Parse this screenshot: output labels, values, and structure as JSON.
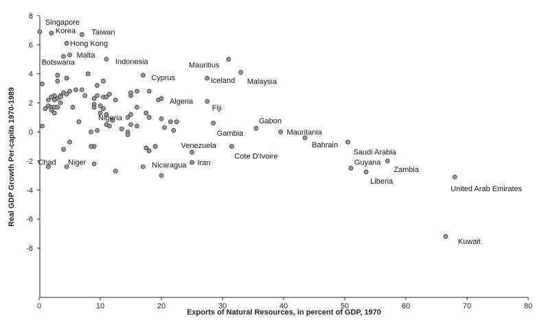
{
  "chart_data": {
    "type": "scatter",
    "title": "",
    "xlabel": "Exports of Natural Resources, in percent of GDP, 1970",
    "ylabel": "Real GDP Growth Per-capita 1970-1989",
    "xlim": [
      0,
      80
    ],
    "ylim": [
      -8,
      8
    ],
    "xticks": [
      "0",
      "10",
      "20",
      "30",
      "40",
      "50",
      "60",
      "70",
      "80"
    ],
    "yticks": [
      "8",
      "6",
      "4",
      "2",
      "0",
      "-2",
      "-4",
      "-6",
      "-8"
    ],
    "grid": false,
    "legend": "none",
    "marker_color": "#9a9a9a",
    "labeled_points": [
      {
        "label": "Singapore",
        "x": 0.1,
        "y": 6.9
      },
      {
        "label": "Korea",
        "x": 2.0,
        "y": 6.8
      },
      {
        "label": "Taiwan",
        "x": 7.0,
        "y": 6.7
      },
      {
        "label": "Hong Kong",
        "x": 4.5,
        "y": 6.1
      },
      {
        "label": "Malta",
        "x": 5.0,
        "y": 5.3
      },
      {
        "label": "Botswana",
        "x": 4.0,
        "y": 5.2
      },
      {
        "label": "Indonesia",
        "x": 11.0,
        "y": 5.0
      },
      {
        "label": "Mauritius",
        "x": 31.0,
        "y": 5.0
      },
      {
        "label": "Malaysia",
        "x": 33.0,
        "y": 4.1
      },
      {
        "label": "Cyprus",
        "x": 17.0,
        "y": 3.9
      },
      {
        "label": "Iceland",
        "x": 27.5,
        "y": 3.7
      },
      {
        "label": "Fiji",
        "x": 27.5,
        "y": 2.1
      },
      {
        "label": "Algeria",
        "x": 20.0,
        "y": 2.3
      },
      {
        "label": "Nigeria",
        "x": 14.5,
        "y": 1.0
      },
      {
        "label": "Gabon",
        "x": 35.5,
        "y": 0.25
      },
      {
        "label": "Gambia",
        "x": 28.5,
        "y": 0.6
      },
      {
        "label": "Mauritania",
        "x": 39.5,
        "y": 0.0
      },
      {
        "label": "Bahrain",
        "x": 43.5,
        "y": -0.4
      },
      {
        "label": "Saudi Arabia",
        "x": 50.5,
        "y": -0.7
      },
      {
        "label": "Venezuela",
        "x": 25.0,
        "y": -1.4
      },
      {
        "label": "Cote D'Ivoire",
        "x": 31.5,
        "y": -1.0
      },
      {
        "label": "Chad",
        "x": 1.5,
        "y": -2.4
      },
      {
        "label": "Niger",
        "x": 4.5,
        "y": -2.4
      },
      {
        "label": "Nicaragua",
        "x": 17.0,
        "y": -2.4
      },
      {
        "label": "Iran",
        "x": 25.0,
        "y": -2.1
      },
      {
        "label": "Guyana",
        "x": 51.0,
        "y": -2.5
      },
      {
        "label": "Zambia",
        "x": 57.0,
        "y": -2.0
      },
      {
        "label": "Liberia",
        "x": 53.5,
        "y": -2.75
      },
      {
        "label": "United Arab Emirates",
        "x": 68.0,
        "y": -3.1
      },
      {
        "label": "Kuwait",
        "x": 66.5,
        "y": -7.2
      }
    ],
    "unlabeled_points": [
      [
        0.5,
        3.3
      ],
      [
        3.0,
        3.9
      ],
      [
        3.0,
        3.5
      ],
      [
        4.5,
        3.7
      ],
      [
        8.0,
        4.0
      ],
      [
        10.5,
        3.5
      ],
      [
        9.5,
        3.2
      ],
      [
        7.0,
        2.9
      ],
      [
        6.0,
        2.9
      ],
      [
        5.0,
        2.8
      ],
      [
        4.0,
        2.7
      ],
      [
        3.5,
        2.5
      ],
      [
        2.5,
        2.5
      ],
      [
        2.0,
        2.4
      ],
      [
        1.5,
        2.2
      ],
      [
        2.5,
        2.2
      ],
      [
        3.0,
        2.3
      ],
      [
        3.5,
        2.4
      ],
      [
        4.5,
        2.6
      ],
      [
        1.5,
        1.8
      ],
      [
        2.0,
        1.7
      ],
      [
        2.5,
        1.7
      ],
      [
        1.0,
        1.6
      ],
      [
        2.0,
        1.5
      ],
      [
        3.5,
        2.0
      ],
      [
        3.0,
        1.7
      ],
      [
        2.5,
        1.3
      ],
      [
        5.5,
        1.7
      ],
      [
        7.5,
        2.5
      ],
      [
        9.0,
        2.3
      ],
      [
        9.5,
        2.5
      ],
      [
        10.5,
        2.4
      ],
      [
        11.0,
        2.4
      ],
      [
        11.5,
        2.6
      ],
      [
        12.5,
        2.2
      ],
      [
        15.0,
        2.5
      ],
      [
        15.0,
        2.7
      ],
      [
        16.0,
        2.8
      ],
      [
        18.0,
        2.8
      ],
      [
        19.5,
        2.2
      ],
      [
        9.0,
        1.9
      ],
      [
        9.0,
        1.7
      ],
      [
        10.0,
        1.8
      ],
      [
        10.5,
        1.6
      ],
      [
        10.0,
        1.3
      ],
      [
        11.0,
        1.2
      ],
      [
        16.0,
        1.7
      ],
      [
        15.0,
        1.2
      ],
      [
        15.0,
        0.5
      ],
      [
        12.0,
        0.8
      ],
      [
        13.5,
        0.2
      ],
      [
        11.0,
        0.5
      ],
      [
        11.5,
        0.4
      ],
      [
        14.5,
        0.0
      ],
      [
        14.5,
        -0.2
      ],
      [
        16.0,
        0.4
      ],
      [
        17.5,
        1.3
      ],
      [
        18.0,
        1.0
      ],
      [
        20.0,
        0.9
      ],
      [
        21.5,
        0.7
      ],
      [
        22.5,
        0.7
      ],
      [
        20.5,
        0.3
      ],
      [
        22.0,
        0.1
      ],
      [
        8.5,
        0.0
      ],
      [
        9.5,
        0.1
      ],
      [
        6.5,
        0.7
      ],
      [
        0.5,
        0.4
      ],
      [
        9.0,
        -1.0
      ],
      [
        8.5,
        -1.0
      ],
      [
        5.0,
        -0.7
      ],
      [
        4.0,
        -1.2
      ],
      [
        17.5,
        -1.1
      ],
      [
        18.0,
        -1.3
      ],
      [
        19.0,
        -1.0
      ],
      [
        9.0,
        -2.2
      ],
      [
        12.5,
        -2.7
      ],
      [
        20.0,
        -3.0
      ]
    ]
  }
}
